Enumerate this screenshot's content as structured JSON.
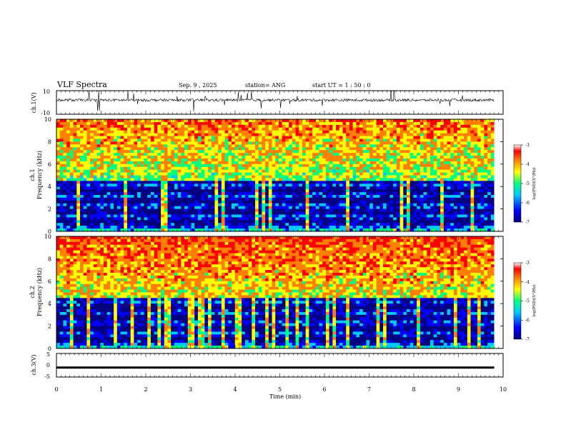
{
  "header": {
    "title": "VLF Spectra",
    "date": "Sep. 9 , 2025",
    "station": "station= ANG",
    "start": "start  UT =   1 : 50 : 0"
  },
  "colors": {
    "scale": [
      "#000080",
      "#0000ff",
      "#00c8ff",
      "#00ff80",
      "#ffff00",
      "#ff8000",
      "#ff0000",
      "#ffffff"
    ]
  },
  "chart_data": [
    {
      "type": "line",
      "name": "ch1-waveform",
      "ylabel": "ch.1(V)",
      "ylim": [
        -10,
        10
      ],
      "yticks": [
        "10",
        "-10"
      ],
      "baseline_volts": 2
    },
    {
      "type": "heatmap",
      "name": "ch1-spectrogram",
      "ylabel": "Frequency  (kHz)",
      "ylabel_ch": "ch.1",
      "ylim": [
        0,
        10
      ],
      "yticks": [
        "10",
        "8",
        "6",
        "4",
        "2",
        "0"
      ],
      "colorbar": {
        "label": "log(PSD)(V²/Hz)",
        "ticks": [
          "-3",
          "-4",
          "-5",
          "-6",
          "-7"
        ],
        "range": [
          -7,
          -3
        ]
      }
    },
    {
      "type": "heatmap",
      "name": "ch2-spectrogram",
      "ylabel": "Frequency  (kHz)",
      "ylabel_ch": "ch.2",
      "ylim": [
        0,
        10
      ],
      "yticks": [
        "10",
        "8",
        "6",
        "4",
        "2",
        "0"
      ],
      "colorbar": {
        "label": "log(PSD)(V²/Hz)",
        "ticks": [
          "-3",
          "-4",
          "-5",
          "-6",
          "-7"
        ],
        "range": [
          -7,
          -3
        ]
      }
    },
    {
      "type": "line",
      "name": "ch3-waveform",
      "ylabel": "ch.3(V)",
      "ylim": [
        -5,
        5
      ],
      "yticks": [
        "5",
        "0",
        "-5"
      ],
      "value_volts": -1
    }
  ],
  "xaxis": {
    "label": "Time  (min)",
    "range": [
      0,
      10
    ],
    "data_end": 9.8,
    "ticks": [
      "0",
      "1",
      "2",
      "3",
      "4",
      "5",
      "6",
      "7",
      "8",
      "9",
      "10"
    ]
  }
}
